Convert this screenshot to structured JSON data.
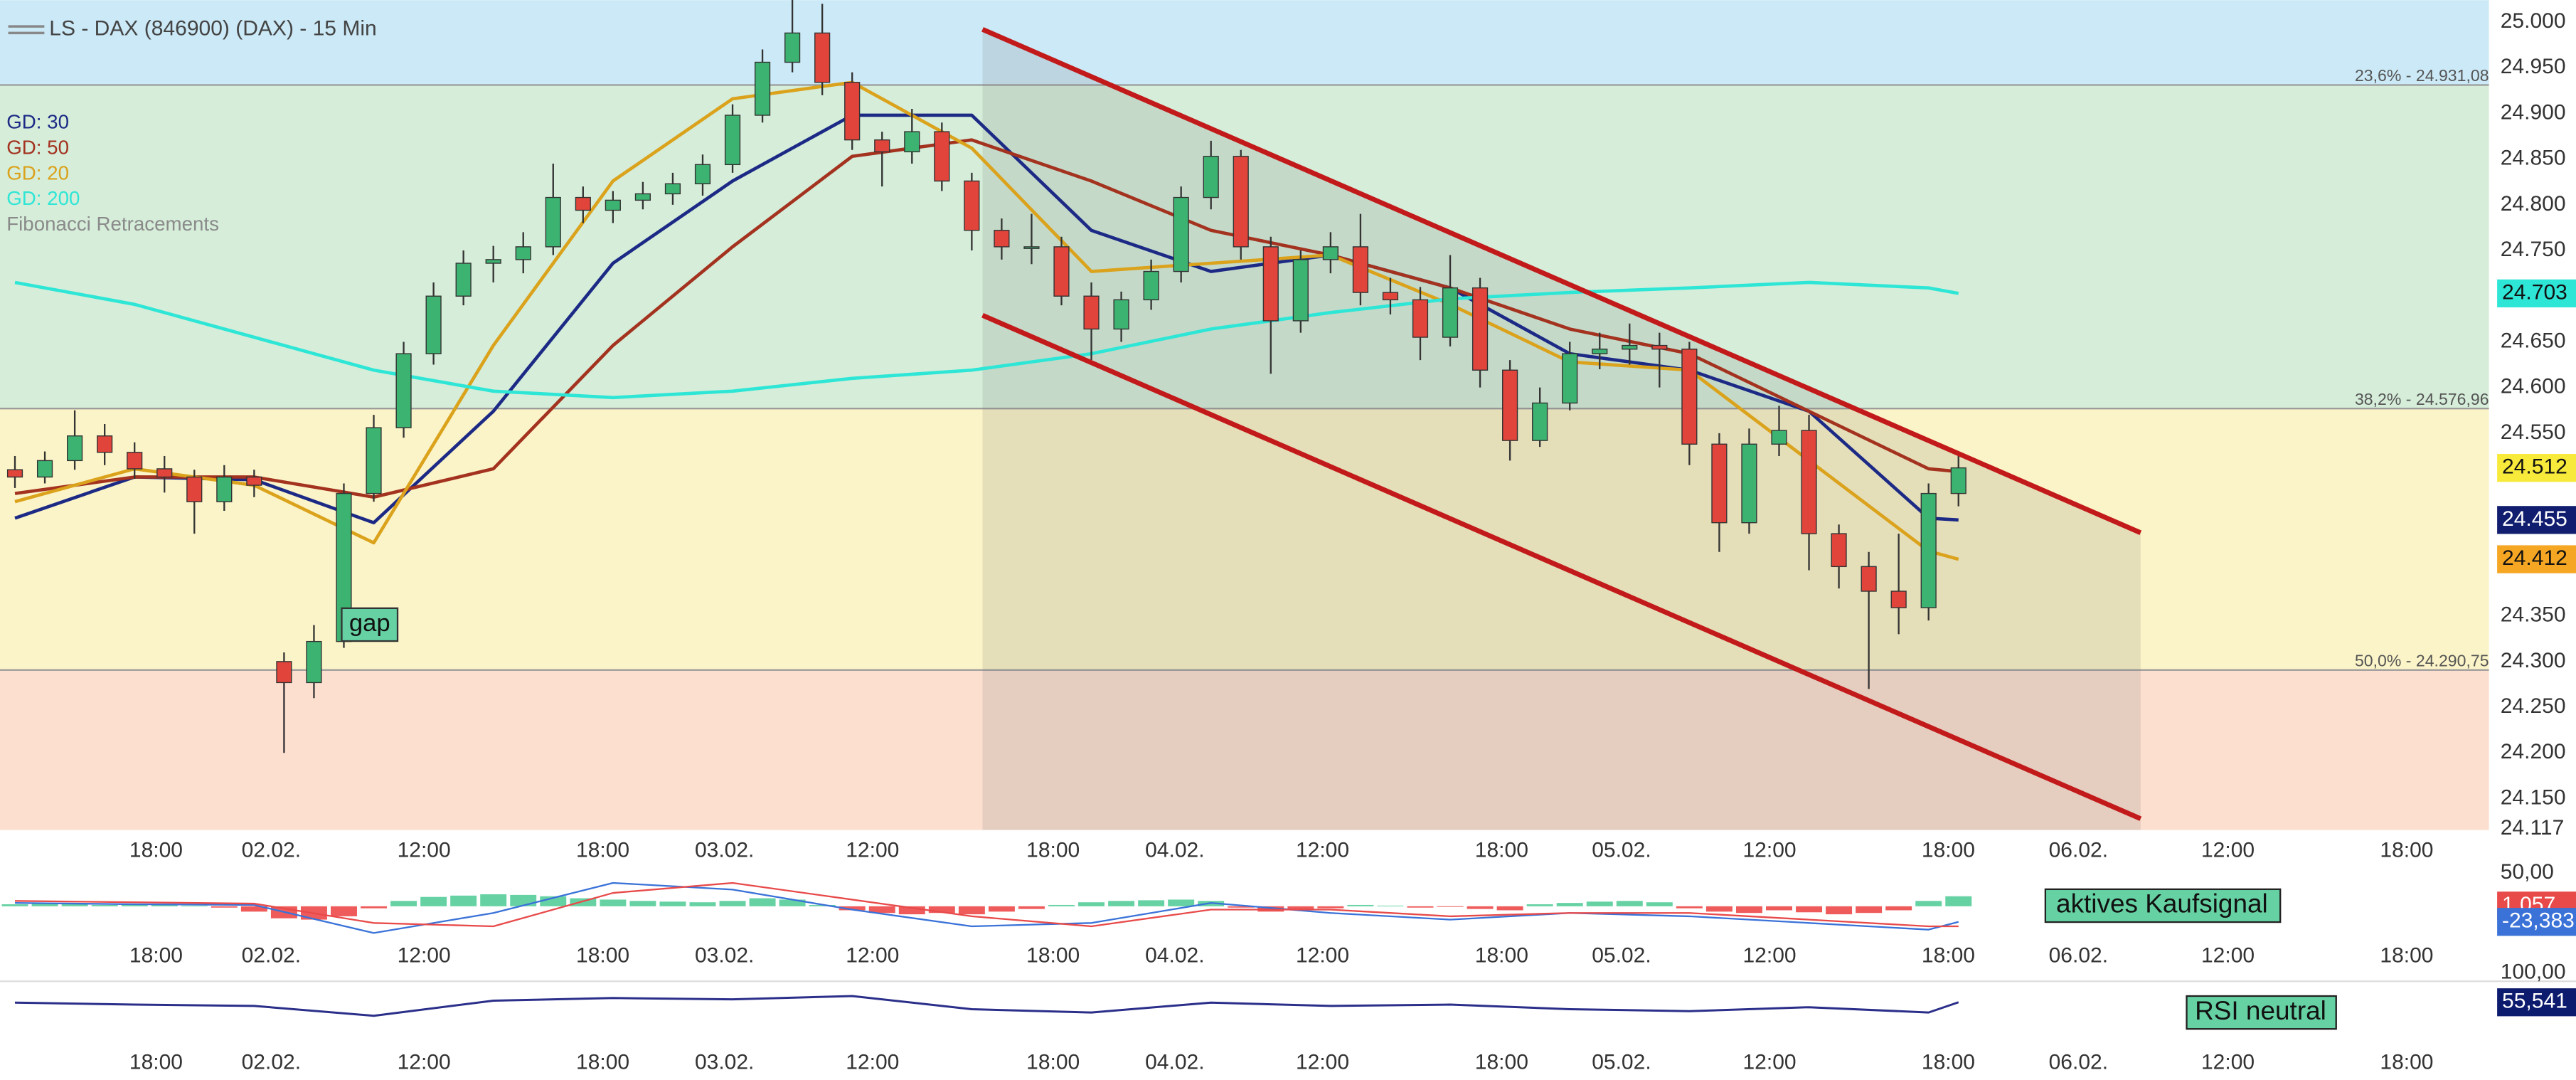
{
  "chart_data": [
    {
      "type": "candlestick",
      "title": "LS - DAX (846900) (DAX) - 15 Min",
      "legend_extra": "Fibonacci Retracements",
      "annotation": "gap",
      "up_color": "#3cb371",
      "down_color": "#e0443a",
      "xlim": [
        -0.5,
        82.74
      ],
      "xticks": [
        {
          "value": 4.72,
          "label": "18:00"
        },
        {
          "value": 8.57,
          "label": "02.02."
        },
        {
          "value": 13.68,
          "label": "12:00"
        },
        {
          "value": 19.66,
          "label": "18:00"
        },
        {
          "value": 23.73,
          "label": "03.02."
        },
        {
          "value": 28.68,
          "label": "12:00"
        },
        {
          "value": 34.72,
          "label": "18:00"
        },
        {
          "value": 38.79,
          "label": "04.02."
        },
        {
          "value": 43.73,
          "label": "12:00"
        },
        {
          "value": 49.72,
          "label": "18:00"
        },
        {
          "value": 53.73,
          "label": "05.02."
        },
        {
          "value": 58.68,
          "label": "12:00"
        },
        {
          "value": 64.66,
          "label": "18:00"
        },
        {
          "value": 69.01,
          "label": "06.02."
        },
        {
          "value": 74.01,
          "label": "12:00"
        },
        {
          "value": 79.99,
          "label": "18:00"
        }
      ],
      "ylim": [
        24076,
        25024
      ],
      "yticks": [
        {
          "value": 25000,
          "label": "25.000"
        },
        {
          "value": 24950,
          "label": "24.950"
        },
        {
          "value": 24900,
          "label": "24.900"
        },
        {
          "value": 24850,
          "label": "24.850"
        },
        {
          "value": 24800,
          "label": "24.800"
        },
        {
          "value": 24750,
          "label": "24.750"
        },
        {
          "value": 24650,
          "label": "24.650"
        },
        {
          "value": 24600,
          "label": "24.600"
        },
        {
          "value": 24550,
          "label": "24.550"
        },
        {
          "value": 24350,
          "label": "24.350"
        },
        {
          "value": 24300,
          "label": "24.300"
        },
        {
          "value": 24250,
          "label": "24.250"
        },
        {
          "value": 24200,
          "label": "24.200"
        },
        {
          "value": 24150,
          "label": "24.150"
        },
        {
          "value": 24117,
          "label": "24.117"
        }
      ],
      "fib_levels": [
        {
          "value": 24931.08,
          "label": "23,6% - 24.931,08"
        },
        {
          "value": 24576.96,
          "label": "38,2% - 24.576,96"
        },
        {
          "value": 24290.75,
          "label": "50,0% - 24.290,75"
        }
      ],
      "zone_colors": [
        "#cbe9f6",
        "#d5edd9",
        "#fbf4c8",
        "#fcdfcf"
      ],
      "x": [
        0,
        1,
        2,
        3,
        4,
        5,
        6,
        7,
        8,
        9,
        10,
        11,
        12,
        13,
        14,
        15,
        16,
        17,
        18,
        19,
        20,
        21,
        22,
        23,
        24,
        25,
        26,
        27,
        28,
        29,
        30,
        31,
        32,
        33,
        34,
        35,
        36,
        37,
        38,
        39,
        40,
        41,
        42,
        43,
        44,
        45,
        46,
        47,
        48,
        49,
        50,
        51,
        52,
        53,
        54,
        55,
        56,
        57,
        58,
        59,
        60,
        61,
        62,
        63,
        64,
        65
      ],
      "ohlc": [
        [
          24510,
          24525,
          24490,
          24502
        ],
        [
          24502,
          24530,
          24495,
          24520
        ],
        [
          24520,
          24575,
          24510,
          24547
        ],
        [
          24547,
          24560,
          24515,
          24529
        ],
        [
          24529,
          24540,
          24500,
          24511
        ],
        [
          24511,
          24525,
          24485,
          24502
        ],
        [
          24502,
          24510,
          24440,
          24475
        ],
        [
          24475,
          24515,
          24465,
          24502
        ],
        [
          24502,
          24510,
          24480,
          24493
        ],
        [
          24300,
          24310,
          24200,
          24277
        ],
        [
          24277,
          24340,
          24260,
          24322
        ],
        [
          24322,
          24495,
          24315,
          24484
        ],
        [
          24484,
          24570,
          24475,
          24556
        ],
        [
          24556,
          24650,
          24545,
          24637
        ],
        [
          24637,
          24715,
          24625,
          24700
        ],
        [
          24700,
          24750,
          24690,
          24736
        ],
        [
          24736,
          24755,
          24715,
          24740
        ],
        [
          24740,
          24770,
          24725,
          24754
        ],
        [
          24754,
          24845,
          24745,
          24808
        ],
        [
          24808,
          24820,
          24780,
          24794
        ],
        [
          24794,
          24815,
          24780,
          24805
        ],
        [
          24805,
          24825,
          24795,
          24812
        ],
        [
          24812,
          24835,
          24800,
          24823
        ],
        [
          24823,
          24855,
          24810,
          24844
        ],
        [
          24844,
          24910,
          24835,
          24898
        ],
        [
          24898,
          24970,
          24890,
          24956
        ],
        [
          24956,
          25025,
          24945,
          24988
        ],
        [
          24988,
          25020,
          24920,
          24934
        ],
        [
          24934,
          24945,
          24860,
          24871
        ],
        [
          24871,
          24880,
          24820,
          24858
        ],
        [
          24858,
          24905,
          24845,
          24880
        ],
        [
          24880,
          24890,
          24815,
          24826
        ],
        [
          24826,
          24835,
          24750,
          24772
        ],
        [
          24772,
          24785,
          24740,
          24754
        ],
        [
          24754,
          24790,
          24735,
          24754
        ],
        [
          24754,
          24765,
          24690,
          24700
        ],
        [
          24700,
          24715,
          24630,
          24664
        ],
        [
          24664,
          24705,
          24650,
          24696
        ],
        [
          24696,
          24740,
          24685,
          24727
        ],
        [
          24727,
          24820,
          24715,
          24808
        ],
        [
          24808,
          24870,
          24795,
          24853
        ],
        [
          24853,
          24860,
          24740,
          24754
        ],
        [
          24754,
          24765,
          24615,
          24673
        ],
        [
          24673,
          24750,
          24660,
          24740
        ],
        [
          24740,
          24770,
          24725,
          24754
        ],
        [
          24754,
          24790,
          24690,
          24704
        ],
        [
          24704,
          24720,
          24680,
          24696
        ],
        [
          24696,
          24710,
          24630,
          24655
        ],
        [
          24655,
          24745,
          24645,
          24709
        ],
        [
          24709,
          24720,
          24600,
          24619
        ],
        [
          24619,
          24630,
          24520,
          24542
        ],
        [
          24542,
          24600,
          24535,
          24583
        ],
        [
          24583,
          24650,
          24575,
          24637
        ],
        [
          24637,
          24660,
          24620,
          24642
        ],
        [
          24642,
          24670,
          24625,
          24646
        ],
        [
          24646,
          24660,
          24600,
          24642
        ],
        [
          24642,
          24650,
          24515,
          24538
        ],
        [
          24538,
          24550,
          24420,
          24452
        ],
        [
          24452,
          24555,
          24440,
          24538
        ],
        [
          24538,
          24580,
          24525,
          24553
        ],
        [
          24553,
          24570,
          24400,
          24440
        ],
        [
          24440,
          24450,
          24380,
          24404
        ],
        [
          24404,
          24420,
          24270,
          24377
        ],
        [
          24377,
          24440,
          24330,
          24359
        ],
        [
          24359,
          24495,
          24345,
          24484
        ],
        [
          24484,
          24525,
          24470,
          24512
        ]
      ],
      "series": [
        {
          "name": "GD: 30",
          "color": "#1c2a86",
          "x": [
            0,
            4,
            8,
            12,
            16,
            20,
            24,
            28,
            32,
            36,
            40,
            44,
            48,
            52,
            56,
            60,
            64,
            65
          ],
          "values": [
            24457,
            24502,
            24499,
            24452,
            24574,
            24736,
            24826,
            24898,
            24898,
            24772,
            24727,
            24745,
            24709,
            24637,
            24619,
            24574,
            24457,
            24455
          ]
        },
        {
          "name": "GD: 50",
          "color": "#a3321f",
          "x": [
            0,
            4,
            8,
            12,
            16,
            20,
            24,
            28,
            32,
            36,
            40,
            44,
            48,
            52,
            56,
            60,
            64,
            65
          ],
          "values": [
            24484,
            24502,
            24502,
            24480,
            24511,
            24646,
            24754,
            24853,
            24871,
            24826,
            24772,
            24745,
            24709,
            24664,
            24637,
            24574,
            24511,
            24508
          ]
        },
        {
          "name": "GD: 20",
          "color": "#dba21c",
          "x": [
            0,
            4,
            8,
            12,
            16,
            20,
            24,
            28,
            32,
            36,
            40,
            44,
            48,
            52,
            56,
            60,
            64,
            65
          ],
          "values": [
            24475,
            24511,
            24493,
            24430,
            24646,
            24826,
            24916,
            24934,
            24862,
            24727,
            24736,
            24745,
            24691,
            24628,
            24619,
            24520,
            24421,
            24412
          ]
        },
        {
          "name": "GD: 200",
          "color": "#2ee6d6",
          "x": [
            0,
            4,
            8,
            12,
            16,
            20,
            24,
            28,
            32,
            36,
            40,
            44,
            48,
            52,
            56,
            60,
            64,
            65
          ],
          "values": [
            24715,
            24691,
            24655,
            24619,
            24596,
            24589,
            24596,
            24610,
            24619,
            24637,
            24664,
            24682,
            24697,
            24704,
            24709,
            24715,
            24709,
            24703
          ]
        }
      ],
      "channel_color": "#c21a1a",
      "channel": [
        {
          "x": [
            32.36,
            71.09
          ],
          "values": [
            24992,
            24441
          ]
        },
        {
          "x": [
            32.36,
            71.09
          ],
          "values": [
            24679,
            24128
          ]
        }
      ],
      "price_tags": [
        {
          "value": 24703,
          "label": "24.703",
          "color": "#2ee6d6",
          "text_color": "#111"
        },
        {
          "value": 24512,
          "label": "24.512",
          "color": "#f7ea3a",
          "text_color": "#111"
        },
        {
          "value": 24455,
          "label": "24.455",
          "color": "#111d6e",
          "text_color": "#fff"
        },
        {
          "value": 24412,
          "label": "24.412",
          "color": "#f5a623",
          "text_color": "#111"
        }
      ]
    },
    {
      "type": "macd",
      "label": "aktives Kaufsignal",
      "ylim": [
        -100,
        60
      ],
      "yticks": [
        {
          "value": 50,
          "label": "50,00"
        }
      ],
      "hist_colors": [
        "#66d2a4",
        "#ef5b5b"
      ],
      "hist_x": [
        0,
        1,
        2,
        3,
        4,
        5,
        6,
        7,
        8,
        9,
        10,
        11,
        12,
        13,
        14,
        15,
        16,
        17,
        18,
        19,
        20,
        21,
        22,
        23,
        24,
        25,
        26,
        27,
        28,
        29,
        30,
        31,
        32,
        33,
        34,
        35,
        36,
        37,
        38,
        39,
        40,
        41,
        42,
        43,
        44,
        45,
        46,
        47,
        48,
        49,
        50,
        51,
        52,
        53,
        54,
        55,
        56,
        57,
        58,
        59,
        60,
        61,
        62,
        63,
        64,
        65
      ],
      "histogram": [
        3,
        4,
        3,
        2,
        3,
        2,
        1,
        -2,
        -8,
        -18,
        -20,
        -15,
        -3,
        8,
        14,
        16,
        18,
        17,
        15,
        12,
        10,
        8,
        7,
        6,
        8,
        12,
        10,
        2,
        -6,
        -10,
        -12,
        -10,
        -12,
        -8,
        -4,
        2,
        6,
        8,
        9,
        10,
        8,
        -2,
        -8,
        -6,
        -3,
        2,
        1,
        -2,
        -1,
        -4,
        -6,
        3,
        5,
        7,
        8,
        6,
        -3,
        -8,
        -10,
        -6,
        -9,
        -12,
        -10,
        -6,
        8,
        15
      ],
      "series": [
        {
          "color": "#3a72d8",
          "x": [
            0,
            4,
            8,
            12,
            16,
            20,
            24,
            28,
            32,
            36,
            40,
            44,
            48,
            52,
            56,
            60,
            64,
            65
          ],
          "values": [
            5,
            3,
            2,
            -40,
            -10,
            35,
            25,
            -5,
            -30,
            -25,
            5,
            -10,
            -20,
            -10,
            -15,
            -25,
            -35,
            -23.383
          ]
        },
        {
          "color": "#e84a4a",
          "x": [
            0,
            4,
            8,
            12,
            16,
            20,
            24,
            28,
            32,
            36,
            40,
            44,
            48,
            52,
            56,
            60,
            64,
            65
          ],
          "values": [
            8,
            6,
            4,
            -25,
            -30,
            20,
            35,
            10,
            -15,
            -30,
            -5,
            -5,
            -15,
            -10,
            -10,
            -20,
            -30,
            -30
          ]
        }
      ],
      "price_tags": [
        {
          "value": 1.057,
          "label": "1,057",
          "color": "#e84a4a",
          "text_color": "#fff"
        },
        {
          "value": -23.383,
          "label": "-23,383",
          "color": "#3a72d8",
          "text_color": "#fff"
        }
      ]
    },
    {
      "type": "line",
      "label": "RSI neutral",
      "ylim": [
        0,
        100
      ],
      "yticks": [
        {
          "value": 100,
          "label": "100,00"
        }
      ],
      "series": [
        {
          "color": "#2b2f8a",
          "x": [
            0,
            4,
            8,
            12,
            16,
            20,
            24,
            28,
            32,
            36,
            40,
            44,
            48,
            52,
            56,
            60,
            64,
            65
          ],
          "values": [
            55,
            52,
            50,
            35,
            58,
            62,
            60,
            65,
            45,
            40,
            55,
            50,
            52,
            45,
            42,
            48,
            40,
            55.541
          ]
        }
      ],
      "price_tags": [
        {
          "value": 55.541,
          "label": "55,541",
          "color": "#0d1b6e",
          "text_color": "#fff"
        }
      ]
    }
  ]
}
